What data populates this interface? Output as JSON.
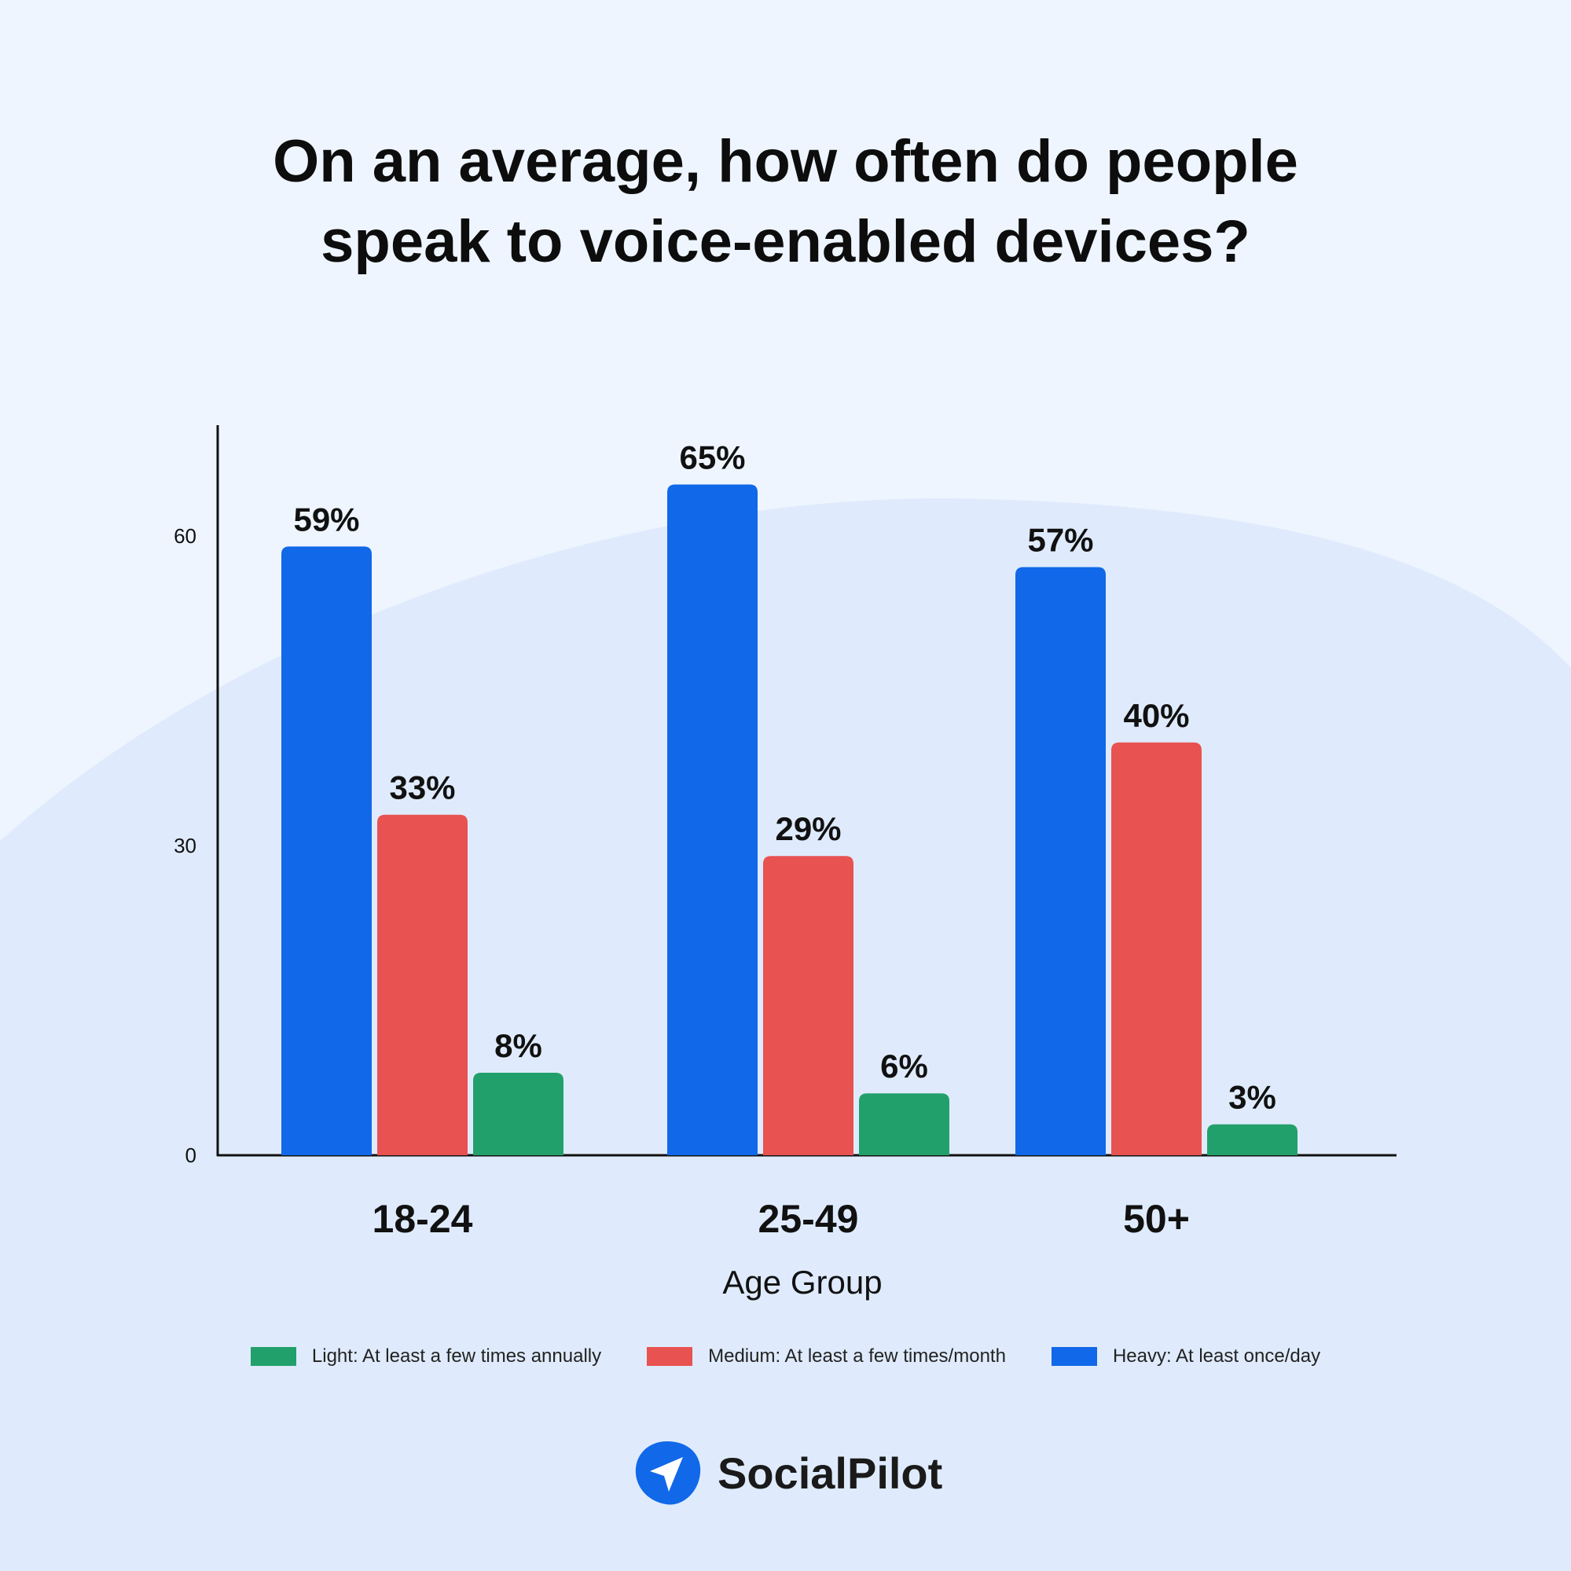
{
  "chart_data": {
    "type": "bar",
    "title": "On an average, how often do people speak to voice-enabled devices?",
    "xlabel": "Age Group",
    "ylabel": "",
    "categories": [
      "18-24",
      "25-49",
      "50+"
    ],
    "yticks": [
      "0",
      "30",
      "60"
    ],
    "ylim": [
      0,
      65
    ],
    "grid": false,
    "legend_position": "bottom",
    "series": [
      {
        "name": "Heavy: At least once/day",
        "color": "#1168e8",
        "values": [
          59,
          65,
          57
        ],
        "labels": [
          "59%",
          "65%",
          "57%"
        ]
      },
      {
        "name": "Medium: At least a few times/month",
        "color": "#e85250",
        "values": [
          33,
          29,
          40
        ],
        "labels": [
          "33%",
          "29%",
          "40%"
        ]
      },
      {
        "name": "Light: At least a few times annually",
        "color": "#22a06b",
        "values": [
          8,
          6,
          3
        ],
        "labels": [
          "8%",
          "6%",
          "3%"
        ]
      }
    ],
    "legend_order": [
      2,
      1,
      0
    ]
  },
  "brand": {
    "name": "SocialPilot",
    "color": "#1168e8"
  }
}
